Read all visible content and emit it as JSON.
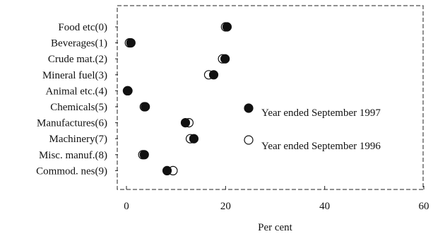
{
  "chart_data": {
    "type": "scatter",
    "xlabel": "Per cent",
    "xlim": [
      0,
      60
    ],
    "x_ticks": [
      0,
      20,
      40,
      60
    ],
    "x_tick_labels": [
      "0",
      "20",
      "40",
      "60"
    ],
    "categories": [
      "Food etc(0)",
      "Beverages(1)",
      "Crude mat.(2)",
      "Mineral fuel(3)",
      "Animal etc.(4)",
      "Chemicals(5)",
      "Manufactures(6)",
      "Machinery(7)",
      "Misc. manuf.(8)",
      "Commod. nes(9)"
    ],
    "series": [
      {
        "name": "Year ended September 1997",
        "marker": "filled",
        "color": "#111111",
        "values": [
          20.3,
          0.9,
          19.9,
          17.6,
          0.2,
          3.8,
          11.9,
          13.6,
          3.6,
          8.2
        ]
      },
      {
        "name": "Year ended September 1996",
        "marker": "open",
        "color": "#111111",
        "values": [
          20.0,
          0.6,
          19.4,
          16.6,
          0.3,
          3.6,
          12.6,
          12.9,
          3.3,
          9.4
        ]
      }
    ],
    "legend_position": "right"
  }
}
